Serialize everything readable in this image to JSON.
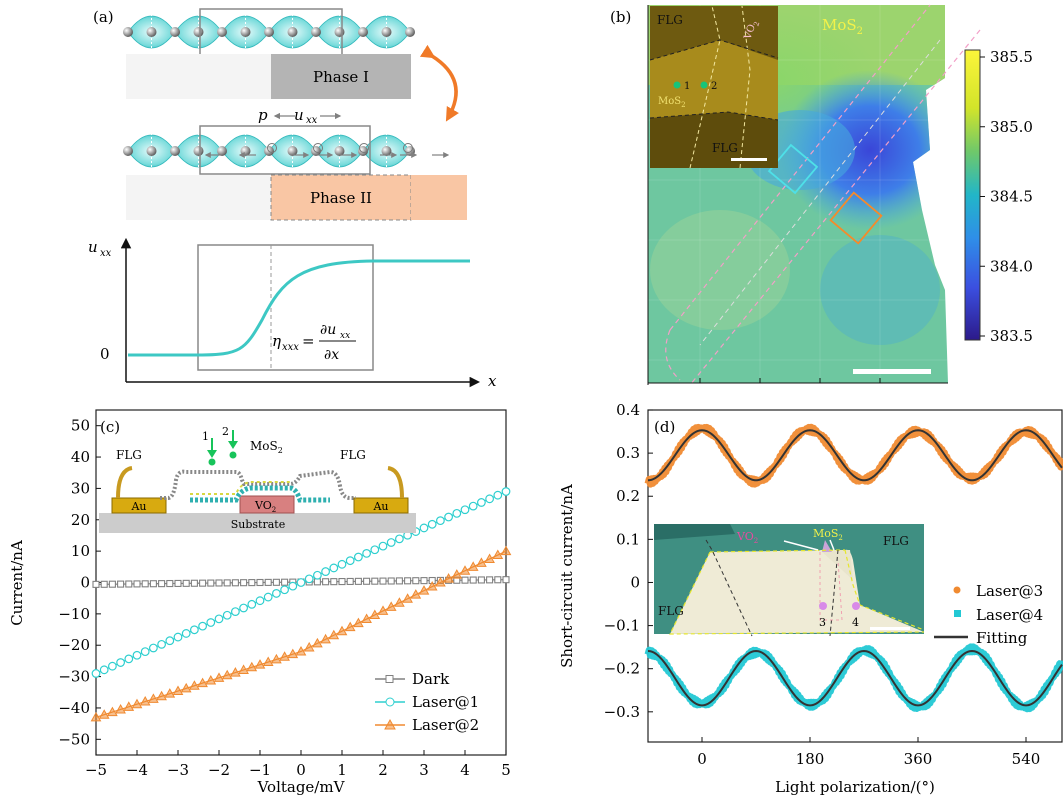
{
  "panel_a": {
    "label": "(a)",
    "phase1": "Phase I",
    "phase2": "Phase II",
    "p": "p",
    "uxx": "u",
    "uxx_sub": "xx",
    "plot_ylabel": "u",
    "plot_ylabel_sub": "xx",
    "plot_zero": "0",
    "plot_x": "x",
    "eta": "η",
    "eta_sub": "xxx",
    "eq": "=",
    "frac_num": "∂u",
    "frac_num_sub": "xx",
    "frac_den": "∂x"
  },
  "panel_b": {
    "label": "(b)",
    "mos2": "MoS",
    "mos2_sub": "2",
    "inset_flg_top": "FLG",
    "inset_flg_bottom": "FLG",
    "inset_vo2": "VO",
    "inset_vo2_sub": "2",
    "inset_mos2": "MoS",
    "inset_mos2_sub": "2",
    "inset_pt1": "1",
    "inset_pt2": "2",
    "colorbar_ticks": [
      "385.5",
      "385.0",
      "384.5",
      "384.0",
      "383.5"
    ]
  },
  "chart_data": [
    {
      "type": "line",
      "panel": "(c)",
      "xlabel": "Voltage/mV",
      "ylabel": "Current/nA",
      "xlim": [
        -5,
        5
      ],
      "ylim": [
        -55,
        55
      ],
      "xticks": [
        "−5",
        "−4",
        "−3",
        "−2",
        "−1",
        "0",
        "1",
        "2",
        "3",
        "4",
        "5"
      ],
      "yticks": [
        "−50",
        "−40",
        "−30",
        "−20",
        "−10",
        "0",
        "10",
        "20",
        "30",
        "40",
        "50"
      ],
      "legend_position": "bottom-right",
      "series": [
        {
          "name": "Dark",
          "x": [
            -5,
            5
          ],
          "y": [
            -0.6,
            0.9
          ],
          "color": "#808080"
        },
        {
          "name": "Laser@1",
          "x": [
            -5,
            0,
            5
          ],
          "y": [
            -29,
            0,
            29
          ],
          "color": "#2ecfcf"
        },
        {
          "name": "Laser@2",
          "x": [
            -5,
            0,
            3.4,
            5
          ],
          "y": [
            -43,
            -22,
            0,
            10
          ],
          "color": "#f08a30"
        }
      ],
      "inset": {
        "flg_left": "FLG",
        "flg_right": "FLG",
        "mos2": "MoS",
        "mos2_sub": "2",
        "au_left": "Au",
        "au_right": "Au",
        "vo2": "VO",
        "vo2_sub": "2",
        "substrate": "Substrate",
        "arrow1": "1",
        "arrow2": "2"
      }
    },
    {
      "type": "line",
      "panel": "(d)",
      "xlabel": "Light polarization/(°)",
      "ylabel": "Short-circuit current/nA",
      "xlim": [
        -90,
        600
      ],
      "ylim": [
        -0.37,
        0.4
      ],
      "xticks": [
        "0",
        "180",
        "360",
        "540"
      ],
      "yticks": [
        "0.4",
        "0.3",
        "0.2",
        "0.1",
        "0",
        "−0.1",
        "−0.2",
        "−0.3"
      ],
      "legend_position": "right",
      "series": [
        {
          "name": "Laser@3",
          "model": "y = 0.295 + 0.058·cos(2θ)",
          "color": "#f08a30"
        },
        {
          "name": "Laser@4",
          "model": "y = −0.222 − 0.063·cos(2θ)",
          "color": "#22c8d4"
        },
        {
          "name": "Fitting",
          "color": "#333333"
        }
      ],
      "inset": {
        "vo2": "VO",
        "vo2_sub": "2",
        "mos2": "MoS",
        "mos2_sub": "2",
        "flg_right": "FLG",
        "flg_left": "FLG",
        "pt3": "3",
        "pt4": "4"
      }
    }
  ]
}
